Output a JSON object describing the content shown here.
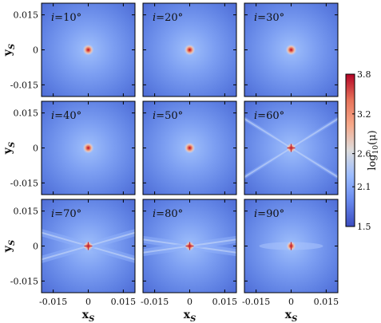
{
  "chart_data": {
    "type": "heatmap",
    "xlabel": "x",
    "xlabel_sub": "S",
    "ylabel": "y",
    "ylabel_sub": "S",
    "xlim": [
      -0.02,
      0.02
    ],
    "ylim": [
      -0.02,
      0.02
    ],
    "x_ticks": [
      -0.015,
      0,
      0.015
    ],
    "y_ticks": [
      0.015,
      0,
      -0.015
    ],
    "x_tick_labels": [
      "-0.015",
      "0",
      "0.015"
    ],
    "y_tick_labels": [
      "0.015",
      "0",
      "-0.015"
    ],
    "grid": false,
    "panels": [
      {
        "label": "i = 10°",
        "label_prefix": "i",
        "label_value": "=10°",
        "inclination_deg": 10
      },
      {
        "label": "i = 20°",
        "label_prefix": "i",
        "label_value": "=20°",
        "inclination_deg": 20
      },
      {
        "label": "i = 30°",
        "label_prefix": "i",
        "label_value": "=30°",
        "inclination_deg": 30
      },
      {
        "label": "i = 40°",
        "label_prefix": "i",
        "label_value": "=40°",
        "inclination_deg": 40
      },
      {
        "label": "i = 50°",
        "label_prefix": "i",
        "label_value": "=50°",
        "inclination_deg": 50
      },
      {
        "label": "i = 60°",
        "label_prefix": "i",
        "label_value": "=60°",
        "inclination_deg": 60
      },
      {
        "label": "i = 70°",
        "label_prefix": "i",
        "label_value": "=70°",
        "inclination_deg": 70
      },
      {
        "label": "i = 80°",
        "label_prefix": "i",
        "label_value": "=80°",
        "inclination_deg": 80
      },
      {
        "label": "i = 90°",
        "label_prefix": "i",
        "label_value": "=90°",
        "inclination_deg": 90
      }
    ],
    "colorbar": {
      "label_prefix": "log",
      "label_sub": "10",
      "label_suffix": "(μ)",
      "min": 1.5,
      "max": 3.8,
      "ticks": [
        3.8,
        3.2,
        2.6,
        2.1,
        1.5
      ],
      "tick_labels": [
        "3.8",
        "3.2",
        "2.6",
        "2.1",
        "1.5"
      ],
      "colormap": "coolwarm",
      "colors": [
        "#3b4cc0",
        "#6889ee",
        "#9abbff",
        "#dddcdc",
        "#f7a889",
        "#e7735a",
        "#b40426"
      ]
    }
  }
}
